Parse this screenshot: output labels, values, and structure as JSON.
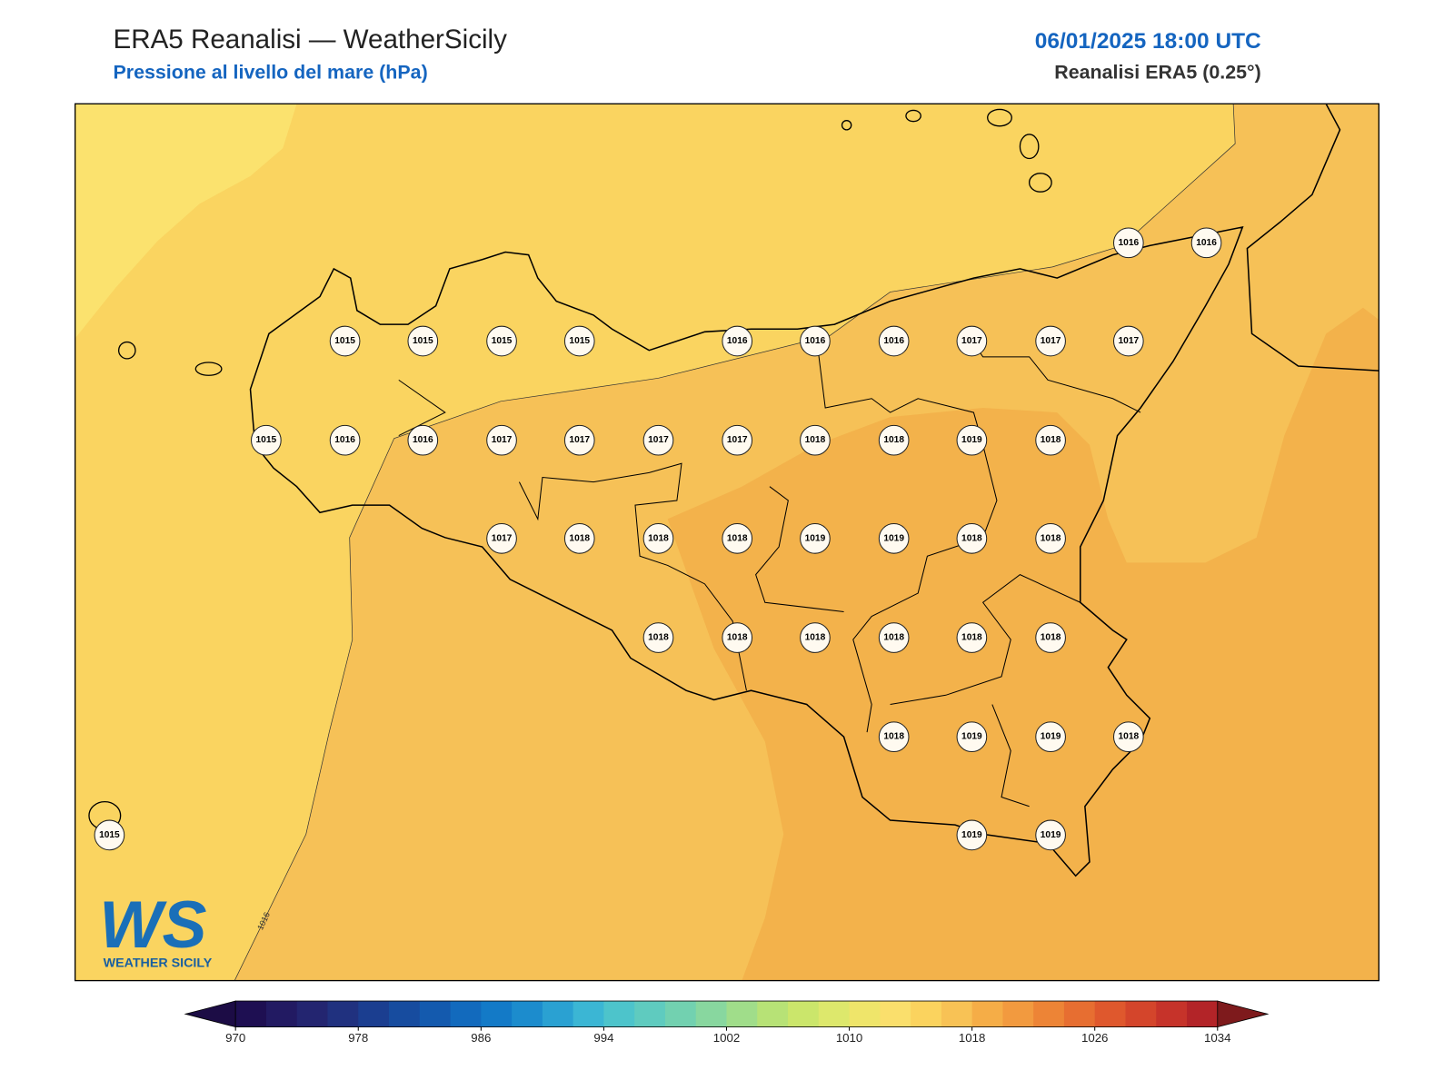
{
  "header": {
    "title": "ERA5 Reanalisi — WeatherSicily",
    "subtitle": "Pressione al livello del mare (hPa)",
    "datetime": "06/01/2025 18:00 UTC",
    "source": "Reanalisi ERA5 (0.25°)"
  },
  "map": {
    "contour_label": "1016",
    "stations": [
      1016,
      1016,
      1015,
      1015,
      1015,
      1015,
      1016,
      1016,
      1016,
      1017,
      1017,
      1017,
      1015,
      1016,
      1016,
      1017,
      1017,
      1017,
      1017,
      1018,
      1018,
      1019,
      1018,
      1017,
      1018,
      1018,
      1018,
      1019,
      1019,
      1018,
      1018,
      1018,
      1018,
      1018,
      1018,
      1018,
      1018,
      1018,
      1019,
      1019,
      1018,
      1015,
      1019,
      1019
    ]
  },
  "colorbar": {
    "range": [
      970,
      1034
    ],
    "ticks": [
      970,
      978,
      986,
      994,
      1002,
      1010,
      1018,
      1026,
      1034
    ],
    "under_color": "#1c0c45",
    "over_color": "#7e1a1c",
    "colors": [
      "#1e0f52",
      "#221a62",
      "#232570",
      "#20317f",
      "#1b3e90",
      "#174c9f",
      "#145aae",
      "#126abd",
      "#137ac7",
      "#1c8ccd",
      "#2aa1d2",
      "#3bb6d4",
      "#4dc4cb",
      "#5fcbbf",
      "#72d1b0",
      "#88d79f",
      "#a0dd8a",
      "#b7e276",
      "#cbe66b",
      "#dde86c",
      "#efe56a",
      "#fadf6c",
      "#fbd35e",
      "#f8c255",
      "#f5ad47",
      "#f29a3f",
      "#ed8436",
      "#e76e31",
      "#df582d",
      "#d4452b",
      "#c6332a",
      "#b32428"
    ]
  },
  "logo": {
    "mark": "WS",
    "text": "WEATHER SICILY"
  }
}
